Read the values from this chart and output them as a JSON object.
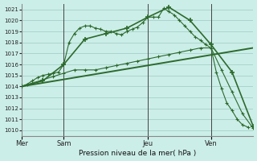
{
  "bg_color": "#cceee8",
  "grid_color": "#aad4ce",
  "line_color": "#2d6a2d",
  "title": "Pression niveau de la mer( hPa )",
  "ylim": [
    1009.5,
    1021.5
  ],
  "yticks": [
    1010,
    1011,
    1012,
    1013,
    1014,
    1015,
    1016,
    1017,
    1018,
    1019,
    1020,
    1021
  ],
  "day_labels": [
    "Mer",
    "Sam",
    "Jeu",
    "Ven"
  ],
  "day_positions": [
    0,
    8,
    24,
    36
  ],
  "xlim": [
    0,
    44
  ],
  "line1_x": [
    0,
    1,
    2,
    3,
    4,
    5,
    6,
    7,
    8,
    9,
    10,
    11,
    12,
    13,
    14,
    15,
    16,
    17,
    18,
    19,
    20,
    21,
    22,
    23,
    24,
    25,
    26,
    27,
    28,
    29,
    30,
    31,
    32,
    33,
    34,
    35,
    36,
    37,
    38,
    39,
    40,
    41,
    42,
    43
  ],
  "line1_y": [
    1014.0,
    1014.2,
    1014.5,
    1014.8,
    1015.0,
    1015.1,
    1015.2,
    1015.3,
    1016.0,
    1018.0,
    1018.8,
    1019.3,
    1019.5,
    1019.5,
    1019.3,
    1019.2,
    1019.0,
    1019.0,
    1018.8,
    1018.7,
    1019.0,
    1019.2,
    1019.4,
    1019.8,
    1020.3,
    1020.3,
    1020.3,
    1021.1,
    1020.8,
    1020.5,
    1020.0,
    1019.5,
    1019.0,
    1018.5,
    1018.2,
    1017.8,
    1017.5,
    1015.3,
    1013.8,
    1012.5,
    1011.8,
    1011.0,
    1010.5,
    1010.3
  ],
  "line2_x": [
    0,
    2,
    4,
    6,
    8,
    10,
    12,
    14,
    16,
    18,
    20,
    22,
    24,
    26,
    28,
    30,
    32,
    34,
    36,
    38,
    40,
    42,
    44
  ],
  "line2_y": [
    1014.0,
    1014.3,
    1014.6,
    1014.9,
    1015.2,
    1015.5,
    1015.5,
    1015.5,
    1015.7,
    1015.9,
    1016.1,
    1016.3,
    1016.5,
    1016.7,
    1016.9,
    1017.1,
    1017.3,
    1017.5,
    1017.5,
    1015.5,
    1013.5,
    1011.5,
    1010.2
  ],
  "line3_x": [
    0,
    4,
    8,
    12,
    16,
    20,
    24,
    28,
    32,
    36,
    40,
    44
  ],
  "line3_y": [
    1014.0,
    1014.5,
    1016.0,
    1018.3,
    1018.8,
    1019.3,
    1020.3,
    1021.2,
    1020.0,
    1017.8,
    1015.3,
    1010.4
  ],
  "line4_x": [
    0,
    44
  ],
  "line4_y": [
    1014.0,
    1017.5
  ]
}
